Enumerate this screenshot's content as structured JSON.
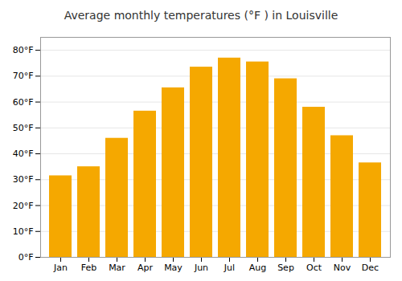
{
  "chart_data": {
    "type": "bar",
    "title": "Average monthly temperatures (°F ) in Louisville",
    "categories": [
      "Jan",
      "Feb",
      "Mar",
      "Apr",
      "May",
      "Jun",
      "Jul",
      "Aug",
      "Sep",
      "Oct",
      "Nov",
      "Dec"
    ],
    "values": [
      31.5,
      35.0,
      46.0,
      56.5,
      65.5,
      73.5,
      77.0,
      75.5,
      69.0,
      58.0,
      47.0,
      36.5
    ],
    "color": "#F5A800",
    "ylim": [
      0,
      85
    ],
    "yticks": [
      {
        "value": 0,
        "label": "0°F"
      },
      {
        "value": 10,
        "label": "10°F"
      },
      {
        "value": 20,
        "label": "20°F"
      },
      {
        "value": 30,
        "label": "30°F"
      },
      {
        "value": 40,
        "label": "40°F"
      },
      {
        "value": 50,
        "label": "50°F"
      },
      {
        "value": 60,
        "label": "60°F"
      },
      {
        "value": 70,
        "label": "70°F"
      },
      {
        "value": 80,
        "label": "80°F"
      }
    ],
    "grid": true
  }
}
